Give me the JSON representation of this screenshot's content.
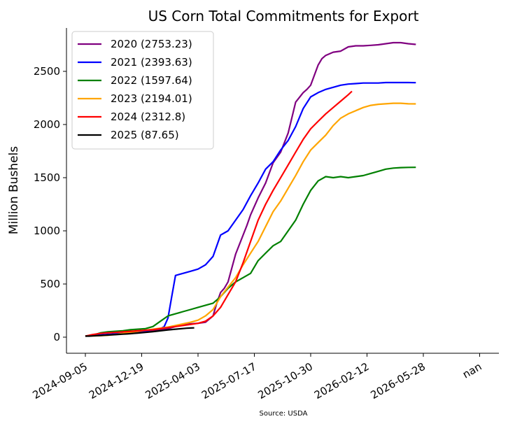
{
  "chart_data": {
    "type": "line",
    "title": "US Corn Total Commitments for Export",
    "xlabel": "",
    "ylabel": "Million Bushels",
    "source": "Source: USDA",
    "ylim": [
      -150,
      2850
    ],
    "yticks": [
      0,
      500,
      1000,
      1500,
      2000,
      2500
    ],
    "xticks": [
      "2024-09-05",
      "2024-12-19",
      "2025-04-03",
      "2025-07-17",
      "2025-10-30",
      "2026-02-12",
      "2026-05-28",
      "nan"
    ],
    "grid": false,
    "legend_position": "top-left",
    "x_note": "x values are seasonal weeks plotted on a common axis (week index 0 = 2024-09-05)",
    "series": [
      {
        "name": "2020 (2753.23)",
        "color": "#800080",
        "x": [
          0,
          2,
          4,
          6,
          8,
          10,
          12,
          14,
          16,
          18,
          20,
          22,
          24,
          26,
          28,
          30,
          32,
          34,
          35,
          36,
          37,
          38,
          40,
          42,
          43,
          44,
          46,
          48,
          50,
          52,
          54,
          56,
          58,
          59,
          60,
          62,
          63,
          64,
          66,
          68,
          70,
          72,
          74,
          76,
          78,
          80,
          82,
          84,
          86,
          88
        ],
        "y": [
          10,
          15,
          20,
          25,
          30,
          35,
          40,
          45,
          50,
          60,
          70,
          80,
          100,
          120,
          125,
          130,
          140,
          200,
          320,
          420,
          460,
          520,
          780,
          960,
          1050,
          1150,
          1310,
          1450,
          1640,
          1740,
          1920,
          2210,
          2300,
          2330,
          2370,
          2560,
          2620,
          2650,
          2680,
          2690,
          2730,
          2740,
          2740,
          2745,
          2750,
          2760,
          2770,
          2770,
          2760,
          2753.23
        ]
      },
      {
        "name": "2021 (2393.63)",
        "color": "#0000ff",
        "x": [
          0,
          2,
          4,
          6,
          8,
          10,
          12,
          14,
          16,
          18,
          20,
          21,
          22,
          23,
          24,
          26,
          28,
          30,
          32,
          34,
          36,
          37,
          38,
          39,
          40,
          42,
          44,
          46,
          48,
          50,
          52,
          54,
          56,
          58,
          60,
          62,
          64,
          66,
          68,
          70,
          72,
          74,
          76,
          78,
          80,
          82,
          84,
          86,
          88
        ],
        "y": [
          10,
          15,
          20,
          25,
          30,
          35,
          40,
          50,
          60,
          70,
          80,
          100,
          180,
          380,
          580,
          600,
          620,
          640,
          680,
          760,
          960,
          980,
          1000,
          1050,
          1100,
          1200,
          1330,
          1450,
          1580,
          1650,
          1760,
          1850,
          1980,
          2150,
          2260,
          2300,
          2330,
          2350,
          2370,
          2380,
          2385,
          2390,
          2390,
          2390,
          2395,
          2395,
          2395,
          2395,
          2393.63
        ]
      },
      {
        "name": "2022 (1597.64)",
        "color": "#008000",
        "x": [
          0,
          2,
          4,
          6,
          8,
          10,
          12,
          14,
          16,
          18,
          20,
          22,
          24,
          26,
          28,
          30,
          32,
          34,
          36,
          38,
          40,
          42,
          44,
          46,
          48,
          50,
          52,
          54,
          56,
          58,
          60,
          62,
          64,
          66,
          68,
          70,
          72,
          74,
          76,
          78,
          80,
          82,
          84,
          86,
          88
        ],
        "y": [
          10,
          20,
          40,
          50,
          55,
          60,
          70,
          75,
          80,
          100,
          150,
          200,
          220,
          240,
          260,
          280,
          300,
          320,
          380,
          460,
          520,
          560,
          600,
          720,
          790,
          860,
          900,
          1000,
          1100,
          1250,
          1380,
          1470,
          1510,
          1500,
          1510,
          1500,
          1510,
          1520,
          1540,
          1560,
          1580,
          1590,
          1595,
          1597,
          1597.64
        ]
      },
      {
        "name": "2023 (2194.01)",
        "color": "#ffa500",
        "x": [
          0,
          2,
          4,
          6,
          8,
          10,
          12,
          14,
          16,
          18,
          20,
          22,
          24,
          26,
          28,
          30,
          32,
          34,
          36,
          38,
          40,
          42,
          44,
          46,
          48,
          50,
          52,
          54,
          56,
          58,
          60,
          62,
          64,
          66,
          68,
          70,
          72,
          74,
          76,
          78,
          80,
          82,
          84,
          86,
          88
        ],
        "y": [
          10,
          12,
          14,
          18,
          25,
          35,
          45,
          55,
          65,
          75,
          85,
          95,
          110,
          125,
          140,
          160,
          200,
          260,
          380,
          470,
          560,
          680,
          790,
          900,
          1040,
          1180,
          1280,
          1400,
          1520,
          1650,
          1760,
          1830,
          1900,
          1990,
          2060,
          2100,
          2130,
          2160,
          2180,
          2190,
          2195,
          2200,
          2200,
          2195,
          2194.01
        ]
      },
      {
        "name": "2024 (2312.8)",
        "color": "#ff0000",
        "x": [
          0,
          2,
          4,
          6,
          8,
          10,
          12,
          14,
          16,
          18,
          20,
          22,
          24,
          26,
          28,
          30,
          32,
          34,
          36,
          38,
          40,
          42,
          44,
          46,
          48,
          50,
          52,
          54,
          56,
          58,
          60,
          62,
          64,
          66,
          68,
          70,
          71
        ],
        "y": [
          10,
          25,
          35,
          40,
          45,
          50,
          55,
          60,
          65,
          70,
          80,
          90,
          100,
          110,
          120,
          130,
          150,
          200,
          280,
          400,
          520,
          700,
          900,
          1100,
          1250,
          1380,
          1500,
          1620,
          1740,
          1860,
          1960,
          2030,
          2100,
          2160,
          2220,
          2280,
          2312.8
        ]
      },
      {
        "name": "2025 (87.65)",
        "color": "#000000",
        "x": [
          0,
          1,
          2,
          3,
          4,
          5,
          6,
          7,
          8,
          9,
          10,
          11,
          12,
          13,
          14,
          15,
          16,
          17,
          18,
          19,
          20,
          21,
          22,
          23,
          24,
          25,
          26,
          27,
          28,
          29
        ],
        "y": [
          10,
          10,
          12,
          14,
          16,
          18,
          20,
          22,
          24,
          26,
          28,
          30,
          33,
          36,
          39,
          42,
          45,
          48,
          52,
          56,
          60,
          64,
          68,
          72,
          75,
          78,
          81,
          84,
          86,
          87.65
        ]
      }
    ]
  }
}
